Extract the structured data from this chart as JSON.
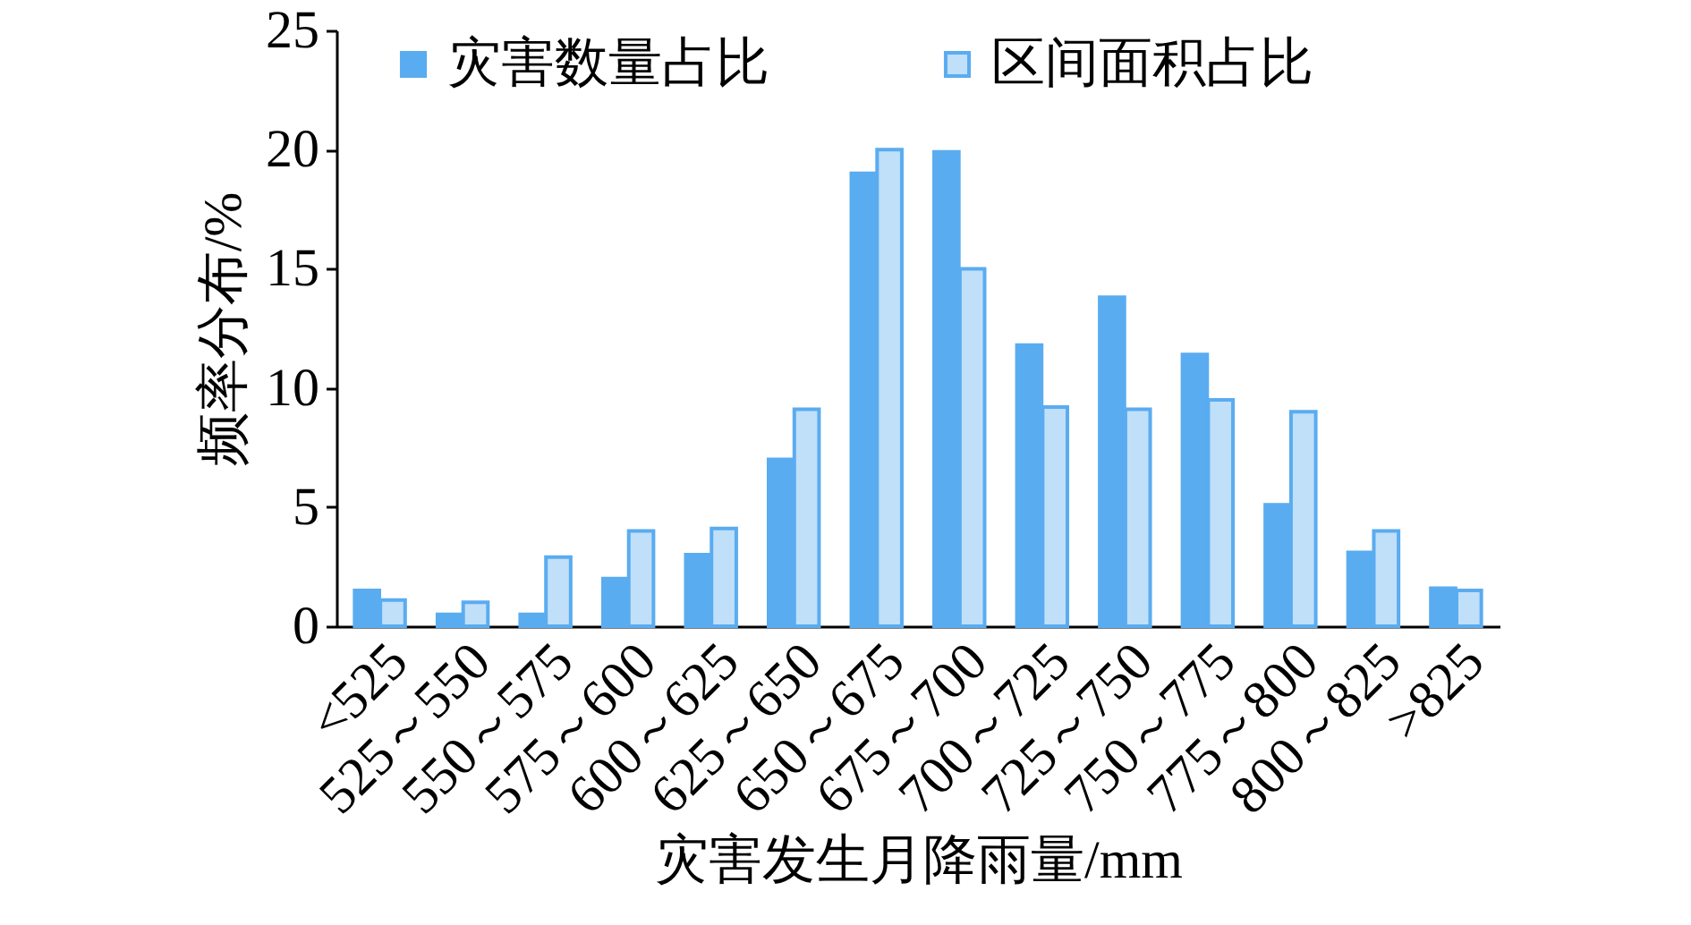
{
  "chart_data": {
    "type": "bar",
    "xlabel": "灾害发生月降雨量/mm",
    "ylabel": "频率分布/%",
    "categories": [
      "<525",
      "525～550",
      "550～575",
      "575～600",
      "600～625",
      "625～650",
      "650～675",
      "675～700",
      "700～725",
      "725～750",
      "750～775",
      "775～800",
      "800～825",
      ">825"
    ],
    "series": [
      {
        "name": "灾害数量占比",
        "color": "#5aacf0",
        "values": [
          1.5,
          0.5,
          0.5,
          2.0,
          3.0,
          7.0,
          19.0,
          19.9,
          11.8,
          13.8,
          11.4,
          5.1,
          3.1,
          1.6
        ]
      },
      {
        "name": "区间面积占比",
        "color": "#5aacf0",
        "values": [
          1.1,
          1.0,
          2.9,
          4.0,
          4.1,
          9.1,
          20.0,
          15.0,
          9.2,
          9.1,
          9.5,
          9.0,
          4.0,
          1.5
        ]
      }
    ],
    "ylim": [
      0,
      25
    ],
    "yticks": [
      0,
      5,
      10,
      15,
      20,
      25
    ],
    "legend": "top"
  }
}
